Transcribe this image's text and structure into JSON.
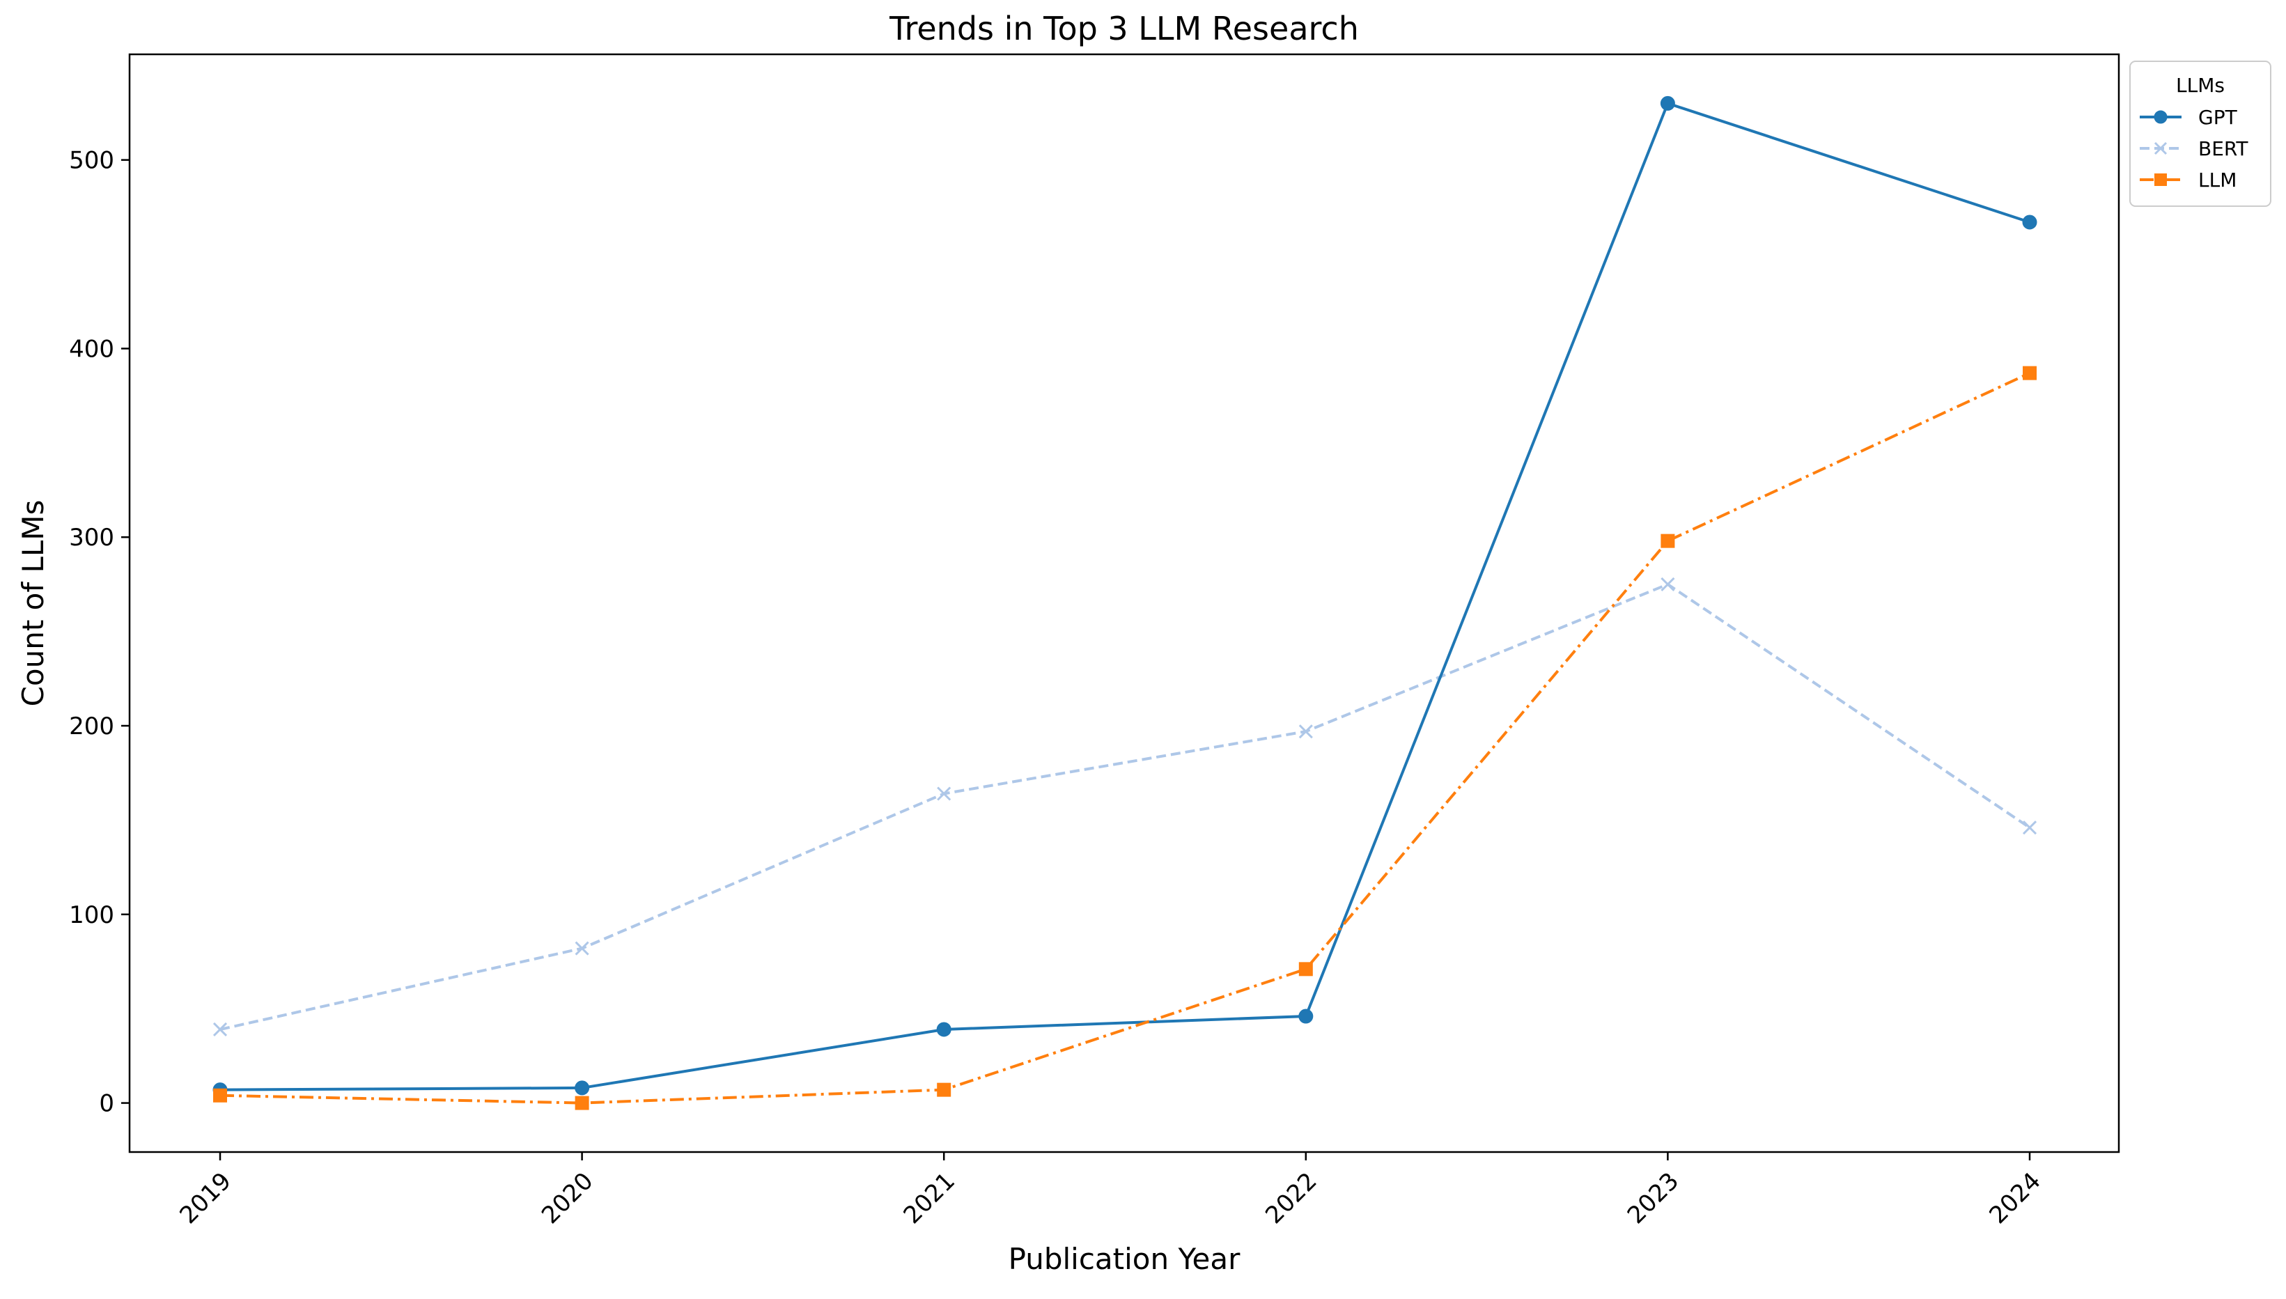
{
  "chart_data": {
    "type": "line",
    "title": "Trends in Top 3 LLM Research",
    "xlabel": "Publication Year",
    "ylabel": "Count of LLMs",
    "categories": [
      "2019",
      "2020",
      "2021",
      "2022",
      "2023",
      "2024"
    ],
    "y_ticks": [
      0,
      100,
      200,
      300,
      400,
      500
    ],
    "ylim": [
      -26,
      556
    ],
    "grid": false,
    "legend": {
      "title": "LLMs",
      "placement": "outside top-right"
    },
    "series": [
      {
        "name": "GPT",
        "values": [
          7,
          8,
          39,
          46,
          530,
          467
        ],
        "color": "#1f77b4",
        "line_style": "solid",
        "marker": "circle"
      },
      {
        "name": "BERT",
        "values": [
          39,
          82,
          164,
          197,
          275,
          146
        ],
        "color": "#aec7e8",
        "line_style": "dashed",
        "marker": "x"
      },
      {
        "name": "LLM",
        "values": [
          4,
          0,
          7,
          71,
          298,
          387
        ],
        "color": "#ff7f0e",
        "line_style": "dash-dot",
        "marker": "square"
      }
    ]
  }
}
